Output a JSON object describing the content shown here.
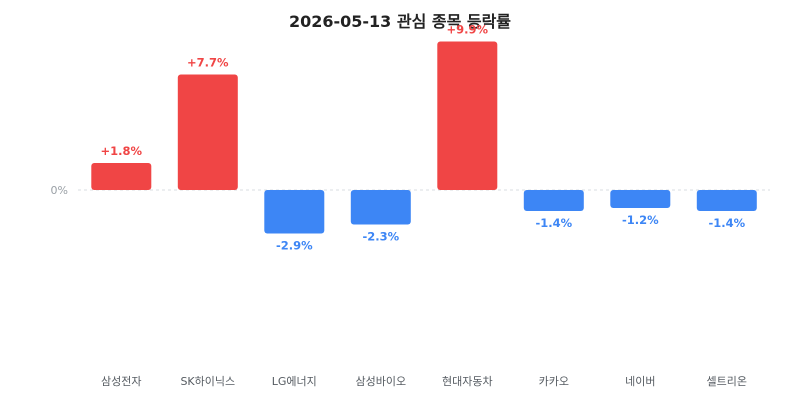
{
  "chart_data": {
    "type": "bar",
    "title": "2026-05-13 관심 종목 등락률",
    "categories": [
      "삼성전자",
      "SK하이닉스",
      "LG에너지",
      "삼성바이오",
      "현대자동차",
      "카카오",
      "네이버",
      "셀트리온"
    ],
    "values": [
      1.8,
      7.7,
      -2.9,
      -2.3,
      9.9,
      -1.4,
      -1.2,
      -1.4
    ],
    "value_labels": [
      "+1.8%",
      "+7.7%",
      "-2.9%",
      "-2.3%",
      "+9.9%",
      "-1.4%",
      "-1.2%",
      "-1.4%"
    ],
    "zero_label": "0%",
    "xlabel": "",
    "ylabel": "",
    "grid": false,
    "colors": {
      "positive": "#f04545",
      "negative": "#3d86f5",
      "zero_line": "#d9dde2"
    }
  }
}
